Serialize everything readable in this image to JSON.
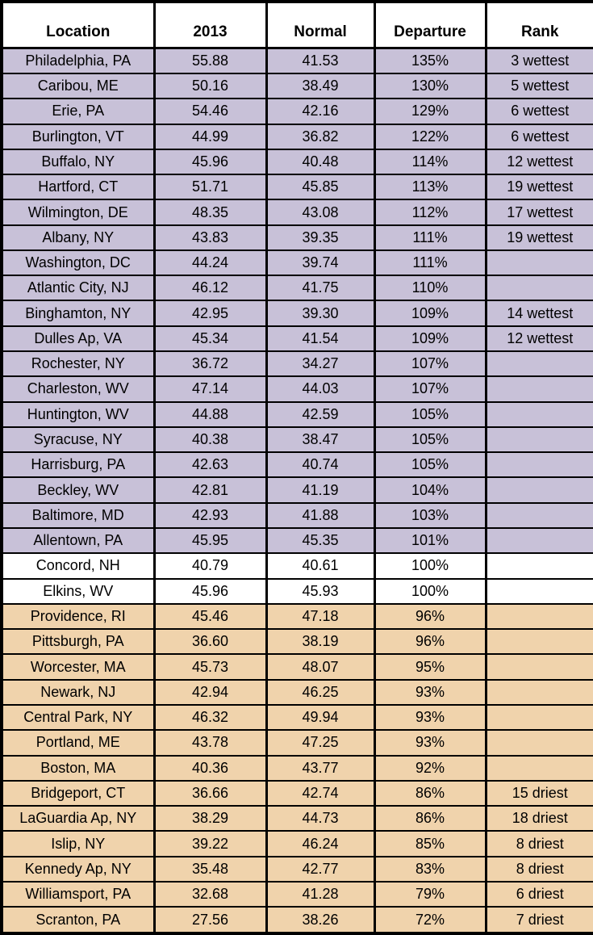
{
  "colors": {
    "wettest": "#C8C1D8",
    "normal": "#FFFFFF",
    "driest": "#F0D3AC",
    "border": "#000000",
    "text": "#000000"
  },
  "chart_data": {
    "type": "table",
    "columns": [
      "Location",
      "2013",
      "Normal",
      "Departure",
      "Rank"
    ],
    "rows": [
      {
        "band": "wettest",
        "cells": [
          "Philadelphia, PA",
          "55.88",
          "41.53",
          "135%",
          "3 wettest"
        ]
      },
      {
        "band": "wettest",
        "cells": [
          "Caribou, ME",
          "50.16",
          "38.49",
          "130%",
          "5 wettest"
        ]
      },
      {
        "band": "wettest",
        "cells": [
          "Erie, PA",
          "54.46",
          "42.16",
          "129%",
          "6 wettest"
        ]
      },
      {
        "band": "wettest",
        "cells": [
          "Burlington, VT",
          "44.99",
          "36.82",
          "122%",
          "6 wettest"
        ]
      },
      {
        "band": "wettest",
        "cells": [
          "Buffalo, NY",
          "45.96",
          "40.48",
          "114%",
          "12 wettest"
        ]
      },
      {
        "band": "wettest",
        "cells": [
          "Hartford, CT",
          "51.71",
          "45.85",
          "113%",
          "19 wettest"
        ]
      },
      {
        "band": "wettest",
        "cells": [
          "Wilmington, DE",
          "48.35",
          "43.08",
          "112%",
          "17 wettest"
        ]
      },
      {
        "band": "wettest",
        "cells": [
          "Albany, NY",
          "43.83",
          "39.35",
          "111%",
          "19 wettest"
        ]
      },
      {
        "band": "wettest",
        "cells": [
          "Washington, DC",
          "44.24",
          "39.74",
          "111%",
          ""
        ]
      },
      {
        "band": "wettest",
        "cells": [
          "Atlantic City, NJ",
          "46.12",
          "41.75",
          "110%",
          ""
        ]
      },
      {
        "band": "wettest",
        "cells": [
          "Binghamton, NY",
          "42.95",
          "39.30",
          "109%",
          "14 wettest"
        ]
      },
      {
        "band": "wettest",
        "cells": [
          "Dulles Ap, VA",
          "45.34",
          "41.54",
          "109%",
          "12 wettest"
        ]
      },
      {
        "band": "wettest",
        "cells": [
          "Rochester, NY",
          "36.72",
          "34.27",
          "107%",
          ""
        ]
      },
      {
        "band": "wettest",
        "cells": [
          "Charleston, WV",
          "47.14",
          "44.03",
          "107%",
          ""
        ]
      },
      {
        "band": "wettest",
        "cells": [
          "Huntington, WV",
          "44.88",
          "42.59",
          "105%",
          ""
        ]
      },
      {
        "band": "wettest",
        "cells": [
          "Syracuse, NY",
          "40.38",
          "38.47",
          "105%",
          ""
        ]
      },
      {
        "band": "wettest",
        "cells": [
          "Harrisburg, PA",
          "42.63",
          "40.74",
          "105%",
          ""
        ]
      },
      {
        "band": "wettest",
        "cells": [
          "Beckley, WV",
          "42.81",
          "41.19",
          "104%",
          ""
        ]
      },
      {
        "band": "wettest",
        "cells": [
          "Baltimore, MD",
          "42.93",
          "41.88",
          "103%",
          ""
        ]
      },
      {
        "band": "wettest",
        "cells": [
          "Allentown, PA",
          "45.95",
          "45.35",
          "101%",
          ""
        ]
      },
      {
        "band": "normal",
        "cells": [
          "Concord, NH",
          "40.79",
          "40.61",
          "100%",
          ""
        ]
      },
      {
        "band": "normal",
        "cells": [
          "Elkins, WV",
          "45.96",
          "45.93",
          "100%",
          ""
        ]
      },
      {
        "band": "driest",
        "cells": [
          "Providence, RI",
          "45.46",
          "47.18",
          "96%",
          ""
        ]
      },
      {
        "band": "driest",
        "cells": [
          "Pittsburgh, PA",
          "36.60",
          "38.19",
          "96%",
          ""
        ]
      },
      {
        "band": "driest",
        "cells": [
          "Worcester, MA",
          "45.73",
          "48.07",
          "95%",
          ""
        ]
      },
      {
        "band": "driest",
        "cells": [
          "Newark, NJ",
          "42.94",
          "46.25",
          "93%",
          ""
        ]
      },
      {
        "band": "driest",
        "cells": [
          "Central Park, NY",
          "46.32",
          "49.94",
          "93%",
          ""
        ]
      },
      {
        "band": "driest",
        "cells": [
          "Portland, ME",
          "43.78",
          "47.25",
          "93%",
          ""
        ]
      },
      {
        "band": "driest",
        "cells": [
          "Boston, MA",
          "40.36",
          "43.77",
          "92%",
          ""
        ]
      },
      {
        "band": "driest",
        "cells": [
          "Bridgeport, CT",
          "36.66",
          "42.74",
          "86%",
          "15 driest"
        ]
      },
      {
        "band": "driest",
        "cells": [
          "LaGuardia Ap, NY",
          "38.29",
          "44.73",
          "86%",
          "18 driest"
        ]
      },
      {
        "band": "driest",
        "cells": [
          "Islip, NY",
          "39.22",
          "46.24",
          "85%",
          "8 driest"
        ]
      },
      {
        "band": "driest",
        "cells": [
          "Kennedy Ap, NY",
          "35.48",
          "42.77",
          "83%",
          "8 driest"
        ]
      },
      {
        "band": "driest",
        "cells": [
          "Williamsport, PA",
          "32.68",
          "41.28",
          "79%",
          "6 driest"
        ]
      },
      {
        "band": "driest",
        "cells": [
          "Scranton, PA",
          "27.56",
          "38.26",
          "72%",
          "7 driest"
        ]
      }
    ]
  }
}
